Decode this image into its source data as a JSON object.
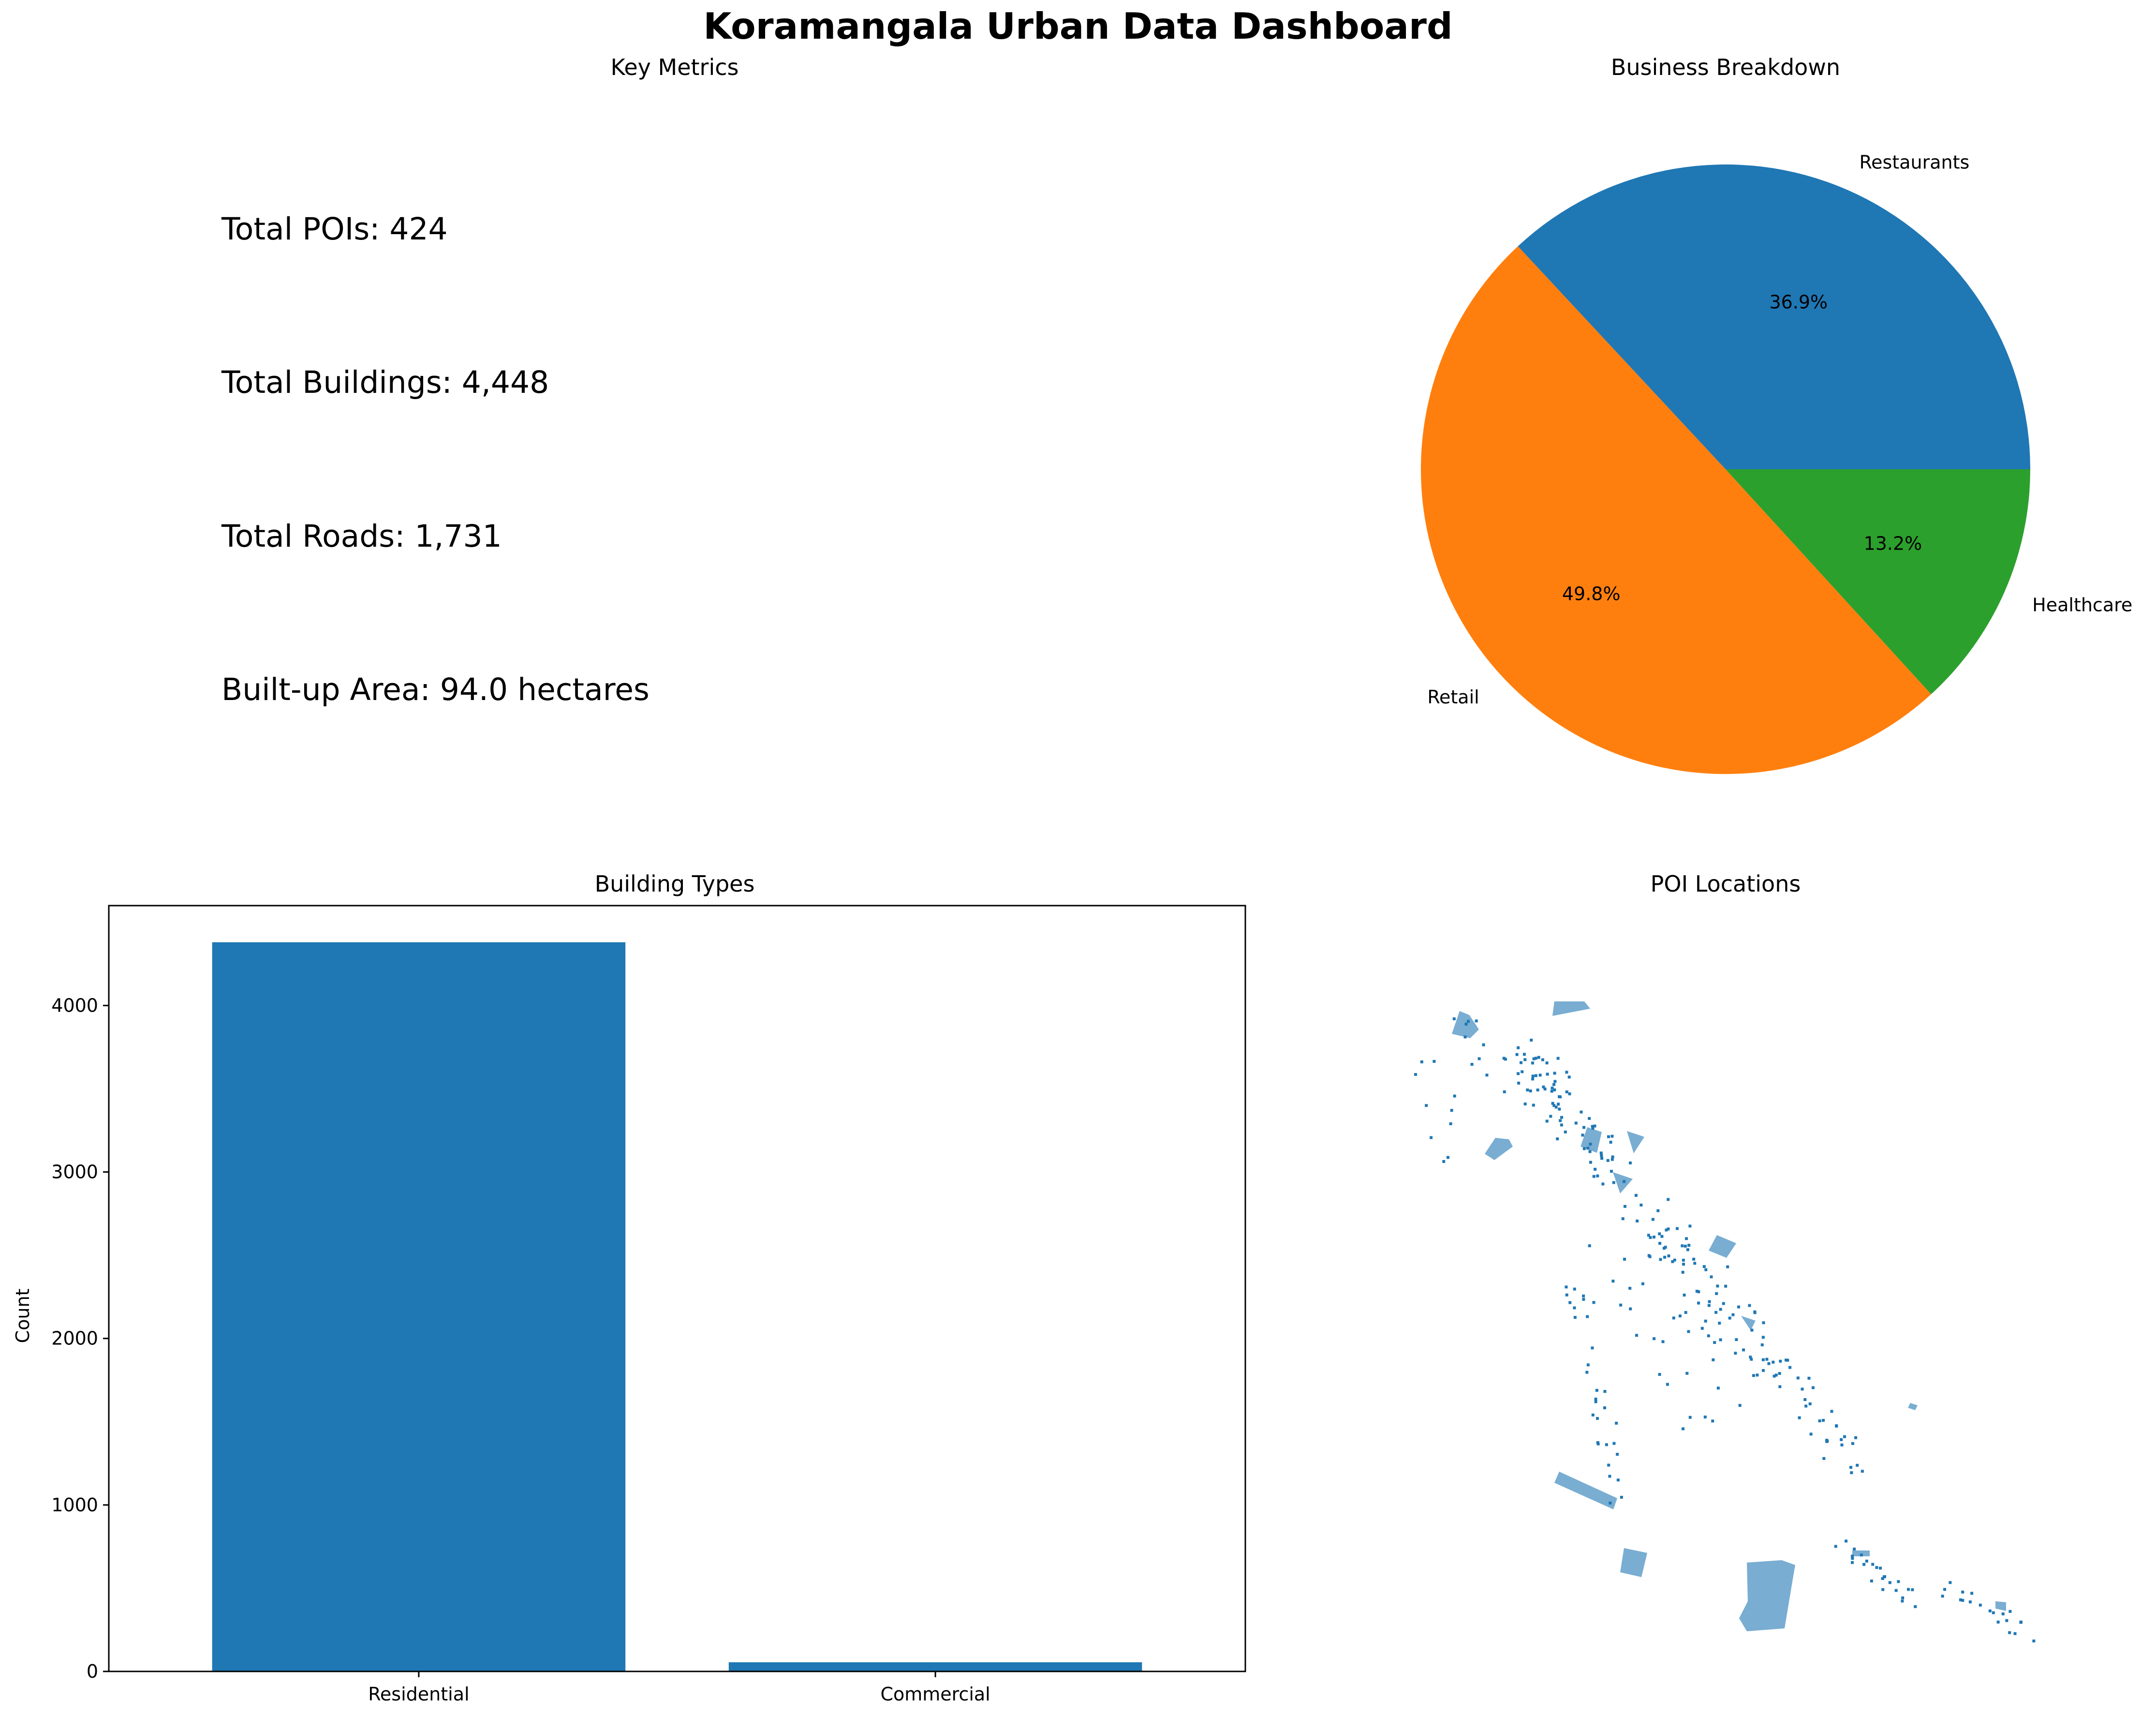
{
  "dashboard": {
    "title": "Koramangala Urban Data Dashboard"
  },
  "key_metrics": {
    "title": "Key Metrics",
    "lines": [
      "Total POIs: 424",
      "Total Buildings: 4,448",
      "Total Roads: 1,731",
      "Built-up Area: 94.0 hectares"
    ]
  },
  "chart_data": [
    {
      "type": "pie",
      "title": "Business Breakdown",
      "labels": [
        "Restaurants",
        "Retail",
        "Healthcare"
      ],
      "values": [
        36.9,
        49.8,
        13.2
      ],
      "pct_labels": [
        "36.9%",
        "49.8%",
        "13.2%"
      ],
      "colors": [
        "#1f77b4",
        "#ff7f0e",
        "#2ca02c"
      ],
      "start_angle_deg": 0,
      "direction": "counterclockwise"
    },
    {
      "type": "bar",
      "title": "Building Types",
      "categories": [
        "Residential",
        "Commercial"
      ],
      "values": [
        4380,
        55
      ],
      "ylabel": "Count",
      "xlabel": "",
      "ylim": [
        0,
        4600
      ],
      "yticks": [
        0,
        1000,
        2000,
        3000,
        4000
      ],
      "color": "#1f77b4",
      "grid": false
    },
    {
      "type": "scatter",
      "title": "POI Locations",
      "axes_visible": false,
      "color": "#1f77b4"
    }
  ]
}
